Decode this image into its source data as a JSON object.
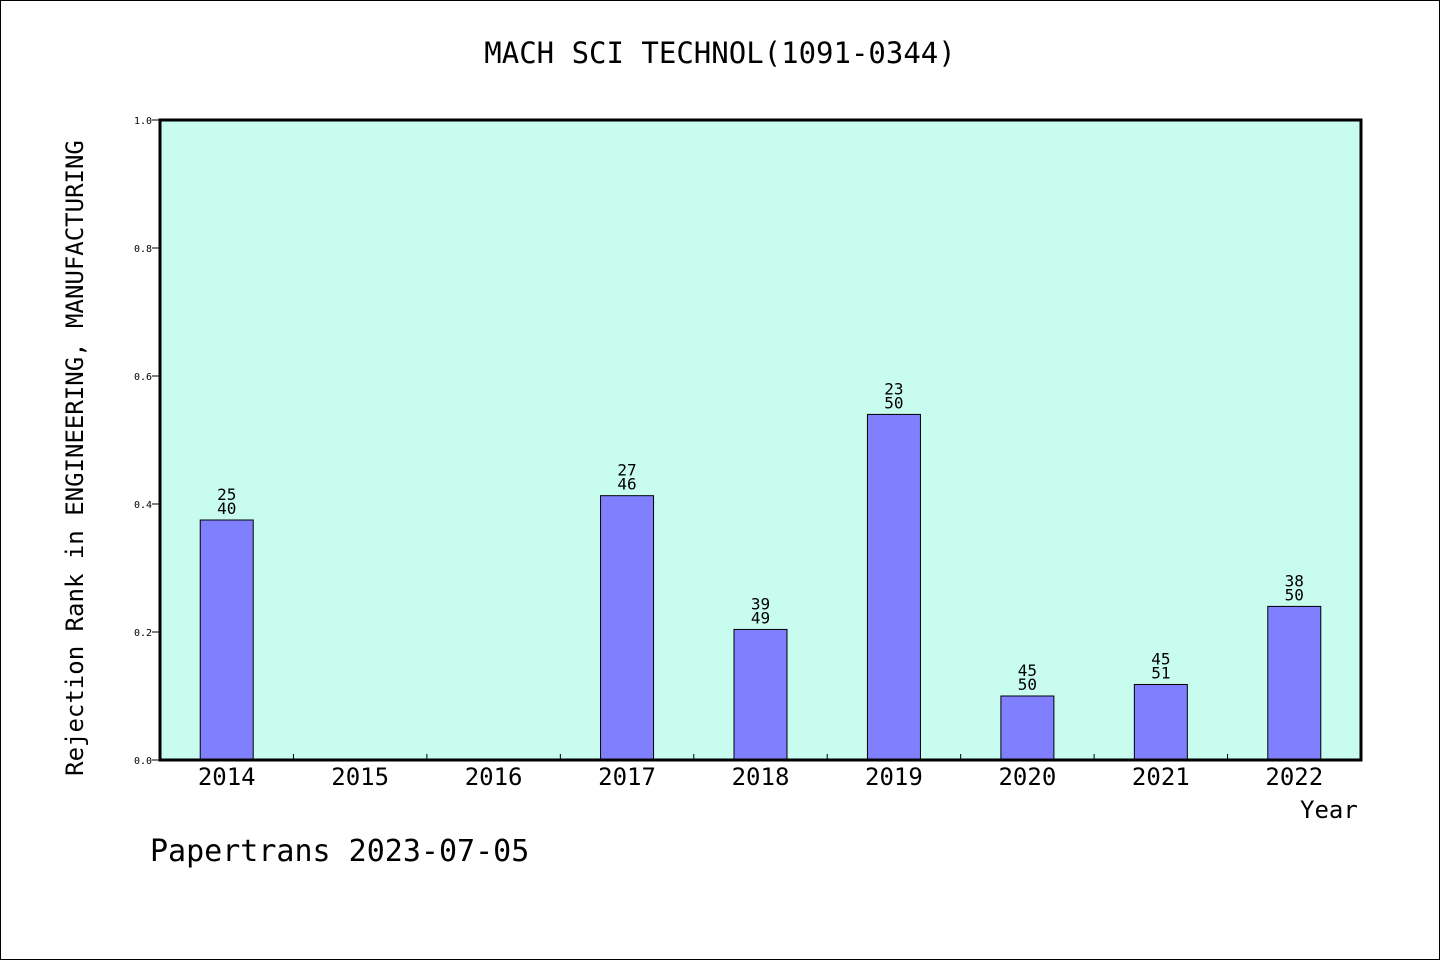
{
  "chart_data": {
    "type": "bar",
    "title": "MACH SCI TECHNOL(1091-0344)",
    "xlabel": "Year",
    "ylabel": "Rejection Rank in ENGINEERING, MANUFACTURING",
    "ylim": [
      0,
      1.0
    ],
    "yticks": [
      "0.0",
      "0.2",
      "0.4",
      "0.6",
      "0.8",
      "1.0"
    ],
    "categories": [
      "2014",
      "2015",
      "2016",
      "2017",
      "2018",
      "2019",
      "2020",
      "2021",
      "2022"
    ],
    "values": [
      0.375,
      null,
      null,
      0.413,
      0.204,
      0.54,
      0.1,
      0.118,
      0.24
    ],
    "rank_labels": [
      {
        "rank": "25",
        "total": "40"
      },
      null,
      null,
      {
        "rank": "27",
        "total": "46"
      },
      {
        "rank": "39",
        "total": "49"
      },
      {
        "rank": "23",
        "total": "50"
      },
      {
        "rank": "45",
        "total": "50"
      },
      {
        "rank": "45",
        "total": "51"
      },
      {
        "rank": "38",
        "total": "50"
      }
    ],
    "grid": false,
    "colors": {
      "plot_background": "#c8fcee",
      "bar_fill": "#8080ff",
      "axis": "#000000"
    }
  },
  "footer": "Papertrans 2023-07-05"
}
